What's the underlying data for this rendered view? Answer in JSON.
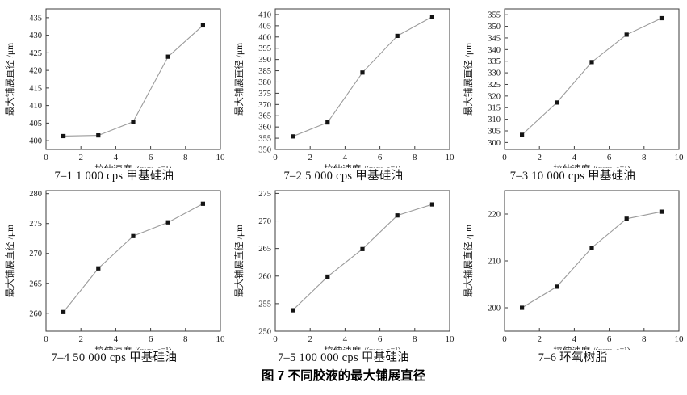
{
  "figure": {
    "caption": "图 7  不同胶液的最大铺展直径",
    "style": {
      "line_color": "#9b9b9b",
      "marker_color": "#141414",
      "axis_color": "#3c3c3c",
      "text_color": "#1a1a1a"
    }
  },
  "chart_data": [
    {
      "type": "line",
      "panel_label": "7–1",
      "subtitle": "7–1  1 000 cps 甲基硅油",
      "xlabel": "拉伸速度 /(mm·s⁻¹)",
      "ylabel": "最大铺展直径 /μm",
      "x": [
        1,
        3,
        5,
        7,
        9
      ],
      "values": [
        401.3,
        401.5,
        405.4,
        423.9,
        432.8
      ],
      "xlim": [
        0,
        10
      ],
      "ylim": [
        397.5,
        437.5
      ],
      "xticks": [
        0,
        2,
        4,
        6,
        8,
        10
      ],
      "yticks": [
        400,
        405,
        410,
        415,
        420,
        425,
        430,
        435
      ],
      "marker": "square",
      "legend": null
    },
    {
      "type": "line",
      "panel_label": "7–2",
      "subtitle": "7–2  5 000 cps 甲基硅油",
      "xlabel": "拉伸速度 /(mm·s⁻¹)",
      "ylabel": "最大铺展直径 /μm",
      "x": [
        1,
        3,
        5,
        7,
        9
      ],
      "values": [
        355.8,
        362.0,
        384.2,
        400.5,
        409.0
      ],
      "xlim": [
        0,
        10
      ],
      "ylim": [
        350,
        412.5
      ],
      "xticks": [
        0,
        2,
        4,
        6,
        8,
        10
      ],
      "yticks": [
        350,
        355,
        360,
        365,
        370,
        375,
        380,
        385,
        390,
        395,
        400,
        405,
        410
      ],
      "marker": "square",
      "legend": null
    },
    {
      "type": "line",
      "panel_label": "7–3",
      "subtitle": "7–3  10 000 cps 甲基硅油",
      "xlabel": "拉伸速度 /(mm·s⁻¹)",
      "ylabel": "最大铺展直径 /μm",
      "x": [
        1,
        3,
        5,
        7,
        9
      ],
      "values": [
        303.3,
        317.2,
        334.6,
        346.4,
        353.5
      ],
      "xlim": [
        0,
        10
      ],
      "ylim": [
        297,
        357.5
      ],
      "xticks": [
        0,
        2,
        4,
        6,
        8,
        10
      ],
      "yticks": [
        300,
        305,
        310,
        315,
        320,
        325,
        330,
        335,
        340,
        345,
        350,
        355
      ],
      "marker": "square",
      "legend": null
    },
    {
      "type": "line",
      "panel_label": "7–4",
      "subtitle": "7–4  50 000 cps 甲基硅油",
      "xlabel": "拉伸速度 /(mm·s⁻¹)",
      "ylabel": "最大铺展直径 /μm",
      "x": [
        1,
        3,
        5,
        7,
        9
      ],
      "values": [
        260.2,
        267.5,
        272.9,
        275.2,
        278.3
      ],
      "xlim": [
        0,
        10
      ],
      "ylim": [
        257,
        280.5
      ],
      "xticks": [
        0,
        2,
        4,
        6,
        8,
        10
      ],
      "yticks": [
        260,
        265,
        270,
        275,
        280
      ],
      "marker": "square",
      "legend": null
    },
    {
      "type": "line",
      "panel_label": "7–5",
      "subtitle": "7–5  100 000 cps 甲基硅油",
      "xlabel": "拉伸速度 /(mm·s⁻¹)",
      "ylabel": "最大铺展直径 /μm",
      "x": [
        1,
        3,
        5,
        7,
        9
      ],
      "values": [
        253.8,
        259.9,
        264.9,
        271.0,
        273.0
      ],
      "xlim": [
        0,
        10
      ],
      "ylim": [
        250,
        275.5
      ],
      "xticks": [
        0,
        2,
        4,
        6,
        8,
        10
      ],
      "yticks": [
        250,
        255,
        260,
        265,
        270,
        275
      ],
      "marker": "square",
      "legend": null
    },
    {
      "type": "line",
      "panel_label": "7–6",
      "subtitle": "7–6  环氧树脂",
      "xlabel": "拉伸速度 /(mm·s⁻¹)",
      "ylabel": "最大铺展直径 /μm",
      "x": [
        1,
        3,
        5,
        7,
        9
      ],
      "values": [
        200.0,
        204.5,
        212.8,
        219.0,
        220.5
      ],
      "xlim": [
        0,
        10
      ],
      "ylim": [
        195,
        225
      ],
      "xticks": [
        0,
        2,
        4,
        6,
        8,
        10
      ],
      "yticks": [
        200,
        210,
        220
      ],
      "marker": "square",
      "legend": null
    }
  ]
}
